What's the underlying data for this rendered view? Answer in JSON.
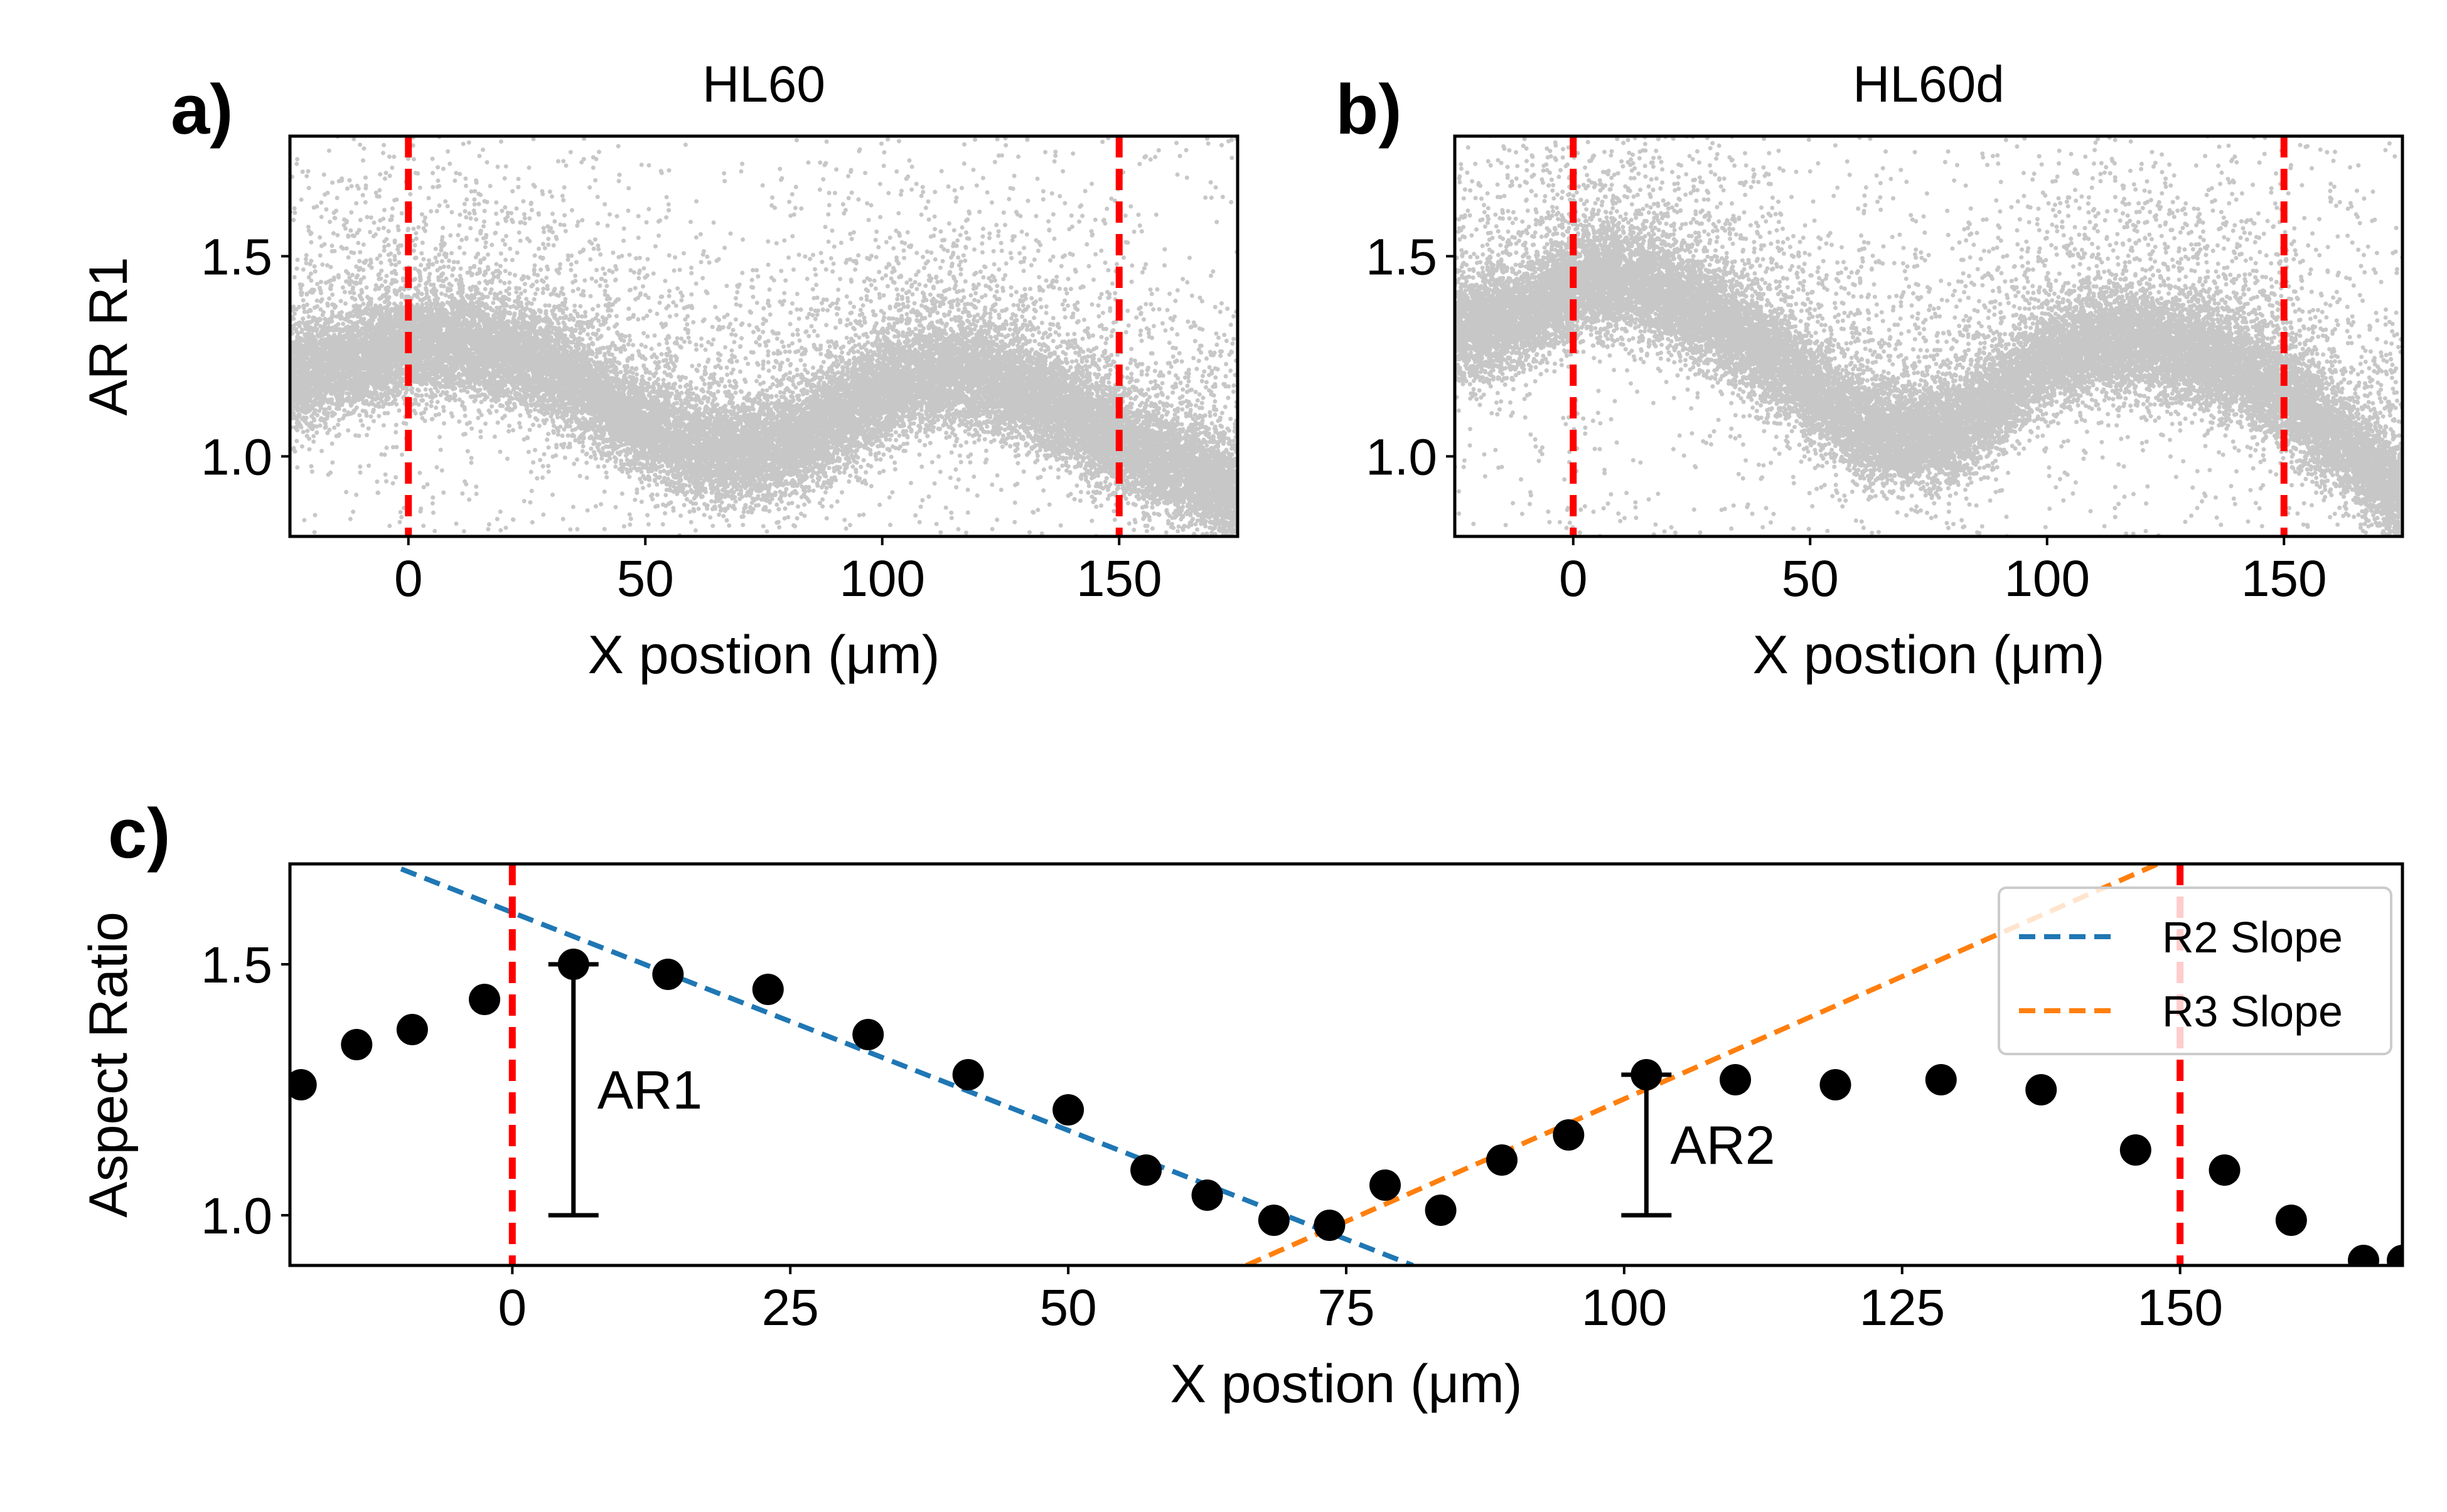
{
  "chart_data": [
    {
      "panel": "a)",
      "type": "scatter",
      "title": "HL60",
      "xlabel": "X postion (μm)",
      "ylabel": "AR R1",
      "xlim": [
        -25,
        175
      ],
      "ylim": [
        0.8,
        1.8
      ],
      "xticks": [
        0,
        50,
        100,
        150
      ],
      "yticks": [
        1.0,
        1.5
      ],
      "ytick_labels": [
        "1.0",
        "1.5"
      ],
      "reference_lines_x": [
        0,
        150
      ],
      "reference_line_color": "#ff0000",
      "point_color": "#000000",
      "trend": {
        "x": [
          -25,
          -10,
          0,
          10,
          20,
          30,
          40,
          50,
          60,
          70,
          80,
          90,
          100,
          110,
          120,
          130,
          140,
          150,
          160,
          175
        ],
        "y": [
          1.19,
          1.24,
          1.27,
          1.28,
          1.26,
          1.21,
          1.14,
          1.07,
          1.02,
          1.0,
          1.02,
          1.09,
          1.16,
          1.2,
          1.2,
          1.16,
          1.1,
          1.03,
          0.98,
          0.9
        ]
      },
      "grid": false
    },
    {
      "panel": "b)",
      "type": "scatter",
      "title": "HL60d",
      "xlabel": "X postion (μm)",
      "ylabel": "",
      "xlim": [
        -25,
        175
      ],
      "ylim": [
        0.8,
        1.8
      ],
      "xticks": [
        0,
        50,
        100,
        150
      ],
      "yticks": [
        1.0,
        1.5
      ],
      "ytick_labels": [
        "1.0",
        "1.5"
      ],
      "reference_lines_x": [
        0,
        150
      ],
      "reference_line_color": "#ff0000",
      "point_color": "#000000",
      "trend": {
        "x": [
          -25,
          -10,
          0,
          10,
          20,
          30,
          40,
          50,
          60,
          70,
          80,
          90,
          100,
          110,
          120,
          130,
          140,
          150,
          160,
          175
        ],
        "y": [
          1.3,
          1.35,
          1.43,
          1.45,
          1.4,
          1.34,
          1.26,
          1.16,
          1.07,
          1.04,
          1.06,
          1.14,
          1.24,
          1.28,
          1.28,
          1.26,
          1.22,
          1.15,
          1.05,
          0.9
        ]
      },
      "grid": false
    },
    {
      "panel": "c)",
      "type": "scatter",
      "xlabel": "X postion (μm)",
      "ylabel": "Aspect Ratio",
      "xlim": [
        -20,
        170
      ],
      "ylim": [
        0.9,
        1.7
      ],
      "xticks": [
        0,
        25,
        50,
        75,
        100,
        125,
        150
      ],
      "yticks": [
        1.0,
        1.5
      ],
      "ytick_labels": [
        "1.0",
        "1.5"
      ],
      "reference_lines_x": [
        0,
        150
      ],
      "reference_line_color": "#ff0000",
      "points": {
        "x": [
          -19,
          -14,
          -9,
          -2.5,
          5.5,
          14,
          23,
          32,
          41,
          50,
          57,
          62.5,
          68.5,
          73.5,
          78.5,
          83.5,
          89,
          95,
          102,
          110,
          119,
          128.5,
          137.5,
          146,
          154,
          160,
          166.5,
          170
        ],
        "y": [
          1.26,
          1.34,
          1.37,
          1.43,
          1.5,
          1.48,
          1.45,
          1.36,
          1.28,
          1.21,
          1.09,
          1.04,
          0.99,
          0.98,
          1.06,
          1.01,
          1.11,
          1.16,
          1.28,
          1.27,
          1.26,
          1.27,
          1.25,
          1.13,
          1.09,
          0.99,
          0.91,
          0.91
        ],
        "color": "#000000"
      },
      "series": [
        {
          "name": "R2 Slope",
          "style": "dashed",
          "color": "#1f77b4",
          "x": [
            -10,
            81
          ],
          "y": [
            1.69,
            0.9
          ]
        },
        {
          "name": "R3 Slope",
          "style": "dashed",
          "color": "#ff7f0e",
          "x": [
            66,
            148
          ],
          "y": [
            0.9,
            1.7
          ]
        }
      ],
      "annotations": [
        {
          "label": "AR1",
          "x": 5.5,
          "y_low": 1.0,
          "y_high": 1.5
        },
        {
          "label": "AR2",
          "x": 102,
          "y_low": 1.0,
          "y_high": 1.28
        }
      ],
      "legend_position": "top-right",
      "grid": false
    }
  ]
}
